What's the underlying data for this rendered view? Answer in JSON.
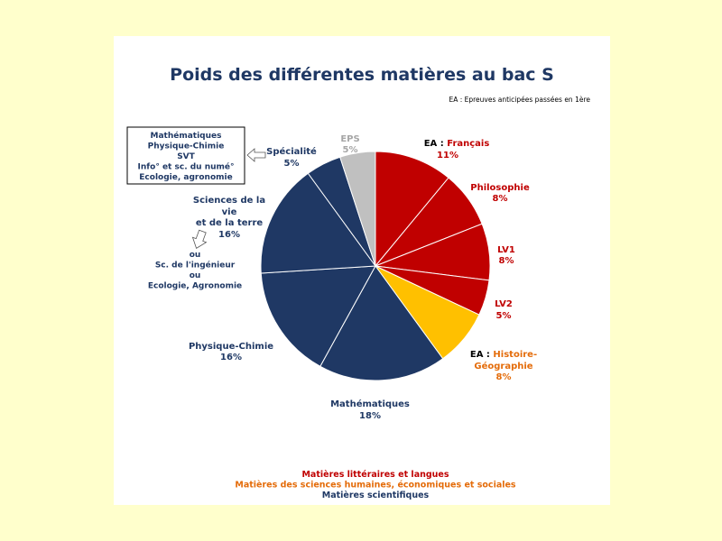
{
  "chart_data": {
    "type": "pie",
    "title": "Poids des différentes matières au bac S",
    "note": "EA : Epreuves anticipées passées en 1ère",
    "slices": [
      {
        "label": "Français",
        "prefix": "EA : ",
        "value": 11,
        "pct_label": "11%",
        "color": "#C00000",
        "group": "litteraires"
      },
      {
        "label": "Philosophie",
        "value": 8,
        "pct_label": "8%",
        "color": "#C00000",
        "group": "litteraires"
      },
      {
        "label": "LV1",
        "value": 8,
        "pct_label": "8%",
        "color": "#C00000",
        "group": "litteraires"
      },
      {
        "label": "LV2",
        "value": 5,
        "pct_label": "5%",
        "color": "#C00000",
        "group": "litteraires"
      },
      {
        "label": "Histoire-Géographie",
        "prefix": "EA : ",
        "value": 8,
        "pct_label": "8%",
        "color": "#FFC000",
        "group": "sciences_humaines"
      },
      {
        "label": "Mathématiques",
        "value": 18,
        "pct_label": "18%",
        "color": "#1F3864",
        "group": "scientifiques"
      },
      {
        "label": "Physique-Chimie",
        "value": 16,
        "pct_label": "16%",
        "color": "#1F3864",
        "group": "scientifiques"
      },
      {
        "label": "Sciences de la vie et de la terre",
        "value": 16,
        "pct_label": "16%",
        "color": "#1F3864",
        "group": "scientifiques"
      },
      {
        "label": "Spécialité",
        "value": 5,
        "pct_label": "5%",
        "color": "#1F3864",
        "group": "scientifiques"
      },
      {
        "label": "EPS",
        "value": 5,
        "pct_label": "5%",
        "color": "#C0C0C0",
        "group": "autre"
      }
    ],
    "specialite_box": [
      "Mathématiques",
      "Physique-Chimie",
      "SVT",
      "Info° et sc. du numé°",
      "Ecologie, agronomie"
    ],
    "svt_alternatives": [
      "ou",
      "Sc. de l'ingénieur",
      "ou",
      "Ecologie, Agronomie"
    ],
    "legend": [
      {
        "text": "Matières littéraires et langues",
        "color": "#C00000"
      },
      {
        "text": "Matières des sciences humaines, économiques et sociales",
        "color": "#E46C0A"
      },
      {
        "text": "Matières scientifiques",
        "color": "#1F3864"
      }
    ]
  },
  "labels": {
    "francais_prefix": "EA : ",
    "francais": "Français",
    "francais_pct": "11%",
    "philo": "Philosophie",
    "philo_pct": "8%",
    "lv1": "LV1",
    "lv1_pct": "8%",
    "lv2": "LV2",
    "lv2_pct": "5%",
    "hg_prefix": "EA : ",
    "hg_line1": "Histoire-",
    "hg_line2": "Géographie",
    "hg_pct": "8%",
    "maths": "Mathématiques",
    "maths_pct": "18%",
    "pc": "Physique-Chimie",
    "pc_pct": "16%",
    "svt_line1": "Sciences de la",
    "svt_line2": "vie",
    "svt_line3": "et de la terre",
    "svt_pct": "16%",
    "spe": "Spécialité",
    "spe_pct": "5%",
    "eps": "EPS",
    "eps_pct": "5%"
  }
}
